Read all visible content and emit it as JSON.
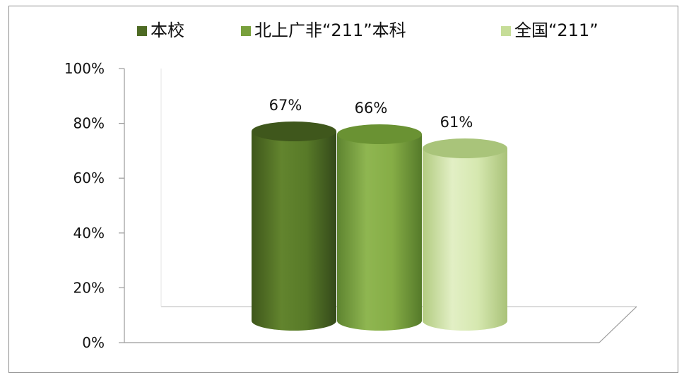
{
  "chart_data": {
    "type": "bar",
    "style": "3d-cylinder",
    "categories": [
      ""
    ],
    "series": [
      {
        "name": "本校",
        "values": [
          67
        ],
        "label": "67%",
        "color": "#4e6b24"
      },
      {
        "name": "北上广非“211”本科",
        "values": [
          66
        ],
        "label": "66%",
        "color": "#78a03c"
      },
      {
        "name": "全国“211”",
        "values": [
          61
        ],
        "label": "61%",
        "color": "#c6dd98"
      }
    ],
    "yticks": [
      "0%",
      "20%",
      "40%",
      "60%",
      "80%",
      "100%"
    ],
    "ylim": [
      0,
      100
    ],
    "legend_position": "top",
    "grid": false
  }
}
